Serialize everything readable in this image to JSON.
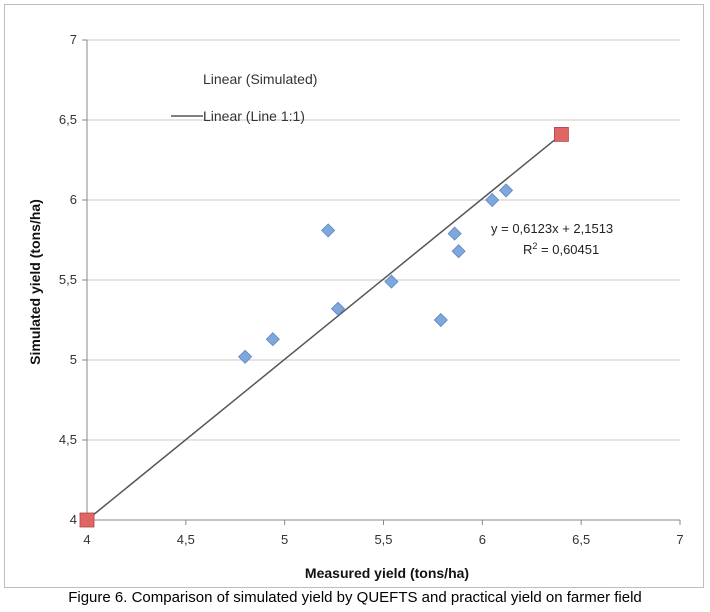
{
  "chart_data": {
    "type": "scatter",
    "xlabel": "Measured yield (tons/ha)",
    "ylabel": "Simulated yield (tons/ha)",
    "xlim": [
      4,
      7
    ],
    "ylim": [
      4,
      7
    ],
    "x_ticks": [
      "4",
      "4,5",
      "5",
      "5,5",
      "6",
      "6,5",
      "7"
    ],
    "y_ticks": [
      "4",
      "4,5",
      "5",
      "5,5",
      "6",
      "6,5",
      "7"
    ],
    "grid": true,
    "series": [
      {
        "marker": "diamond",
        "color": "#7fa7dc",
        "x": [
          4.8,
          4.94,
          5.22,
          5.27,
          5.54,
          5.79,
          5.86,
          5.88,
          6.05,
          6.12
        ],
        "y": [
          5.02,
          5.13,
          5.81,
          5.32,
          5.49,
          5.25,
          5.79,
          5.68,
          6.0,
          6.06
        ]
      },
      {
        "marker": "square",
        "color": "#e06666",
        "x": [
          4.0,
          6.4
        ],
        "y": [
          4.0,
          6.41
        ]
      }
    ],
    "line": {
      "name": "Linear (Line 1:1)",
      "x": [
        4.0,
        6.4
      ],
      "y": [
        4.0,
        6.41
      ],
      "color": "#555555"
    },
    "legend": {
      "placement": "top-left",
      "entries": [
        "Linear (Simulated)",
        "Linear (Line 1:1)"
      ]
    },
    "annotations": {
      "equation": "y = 0,6123x + 2,1513",
      "r2_prefix": "R",
      "r2_sup": "2",
      "r2_value": " = 0,60451"
    }
  },
  "caption": "Figure 6. Comparison of simulated yield by QUEFTS and practical yield on farmer field"
}
